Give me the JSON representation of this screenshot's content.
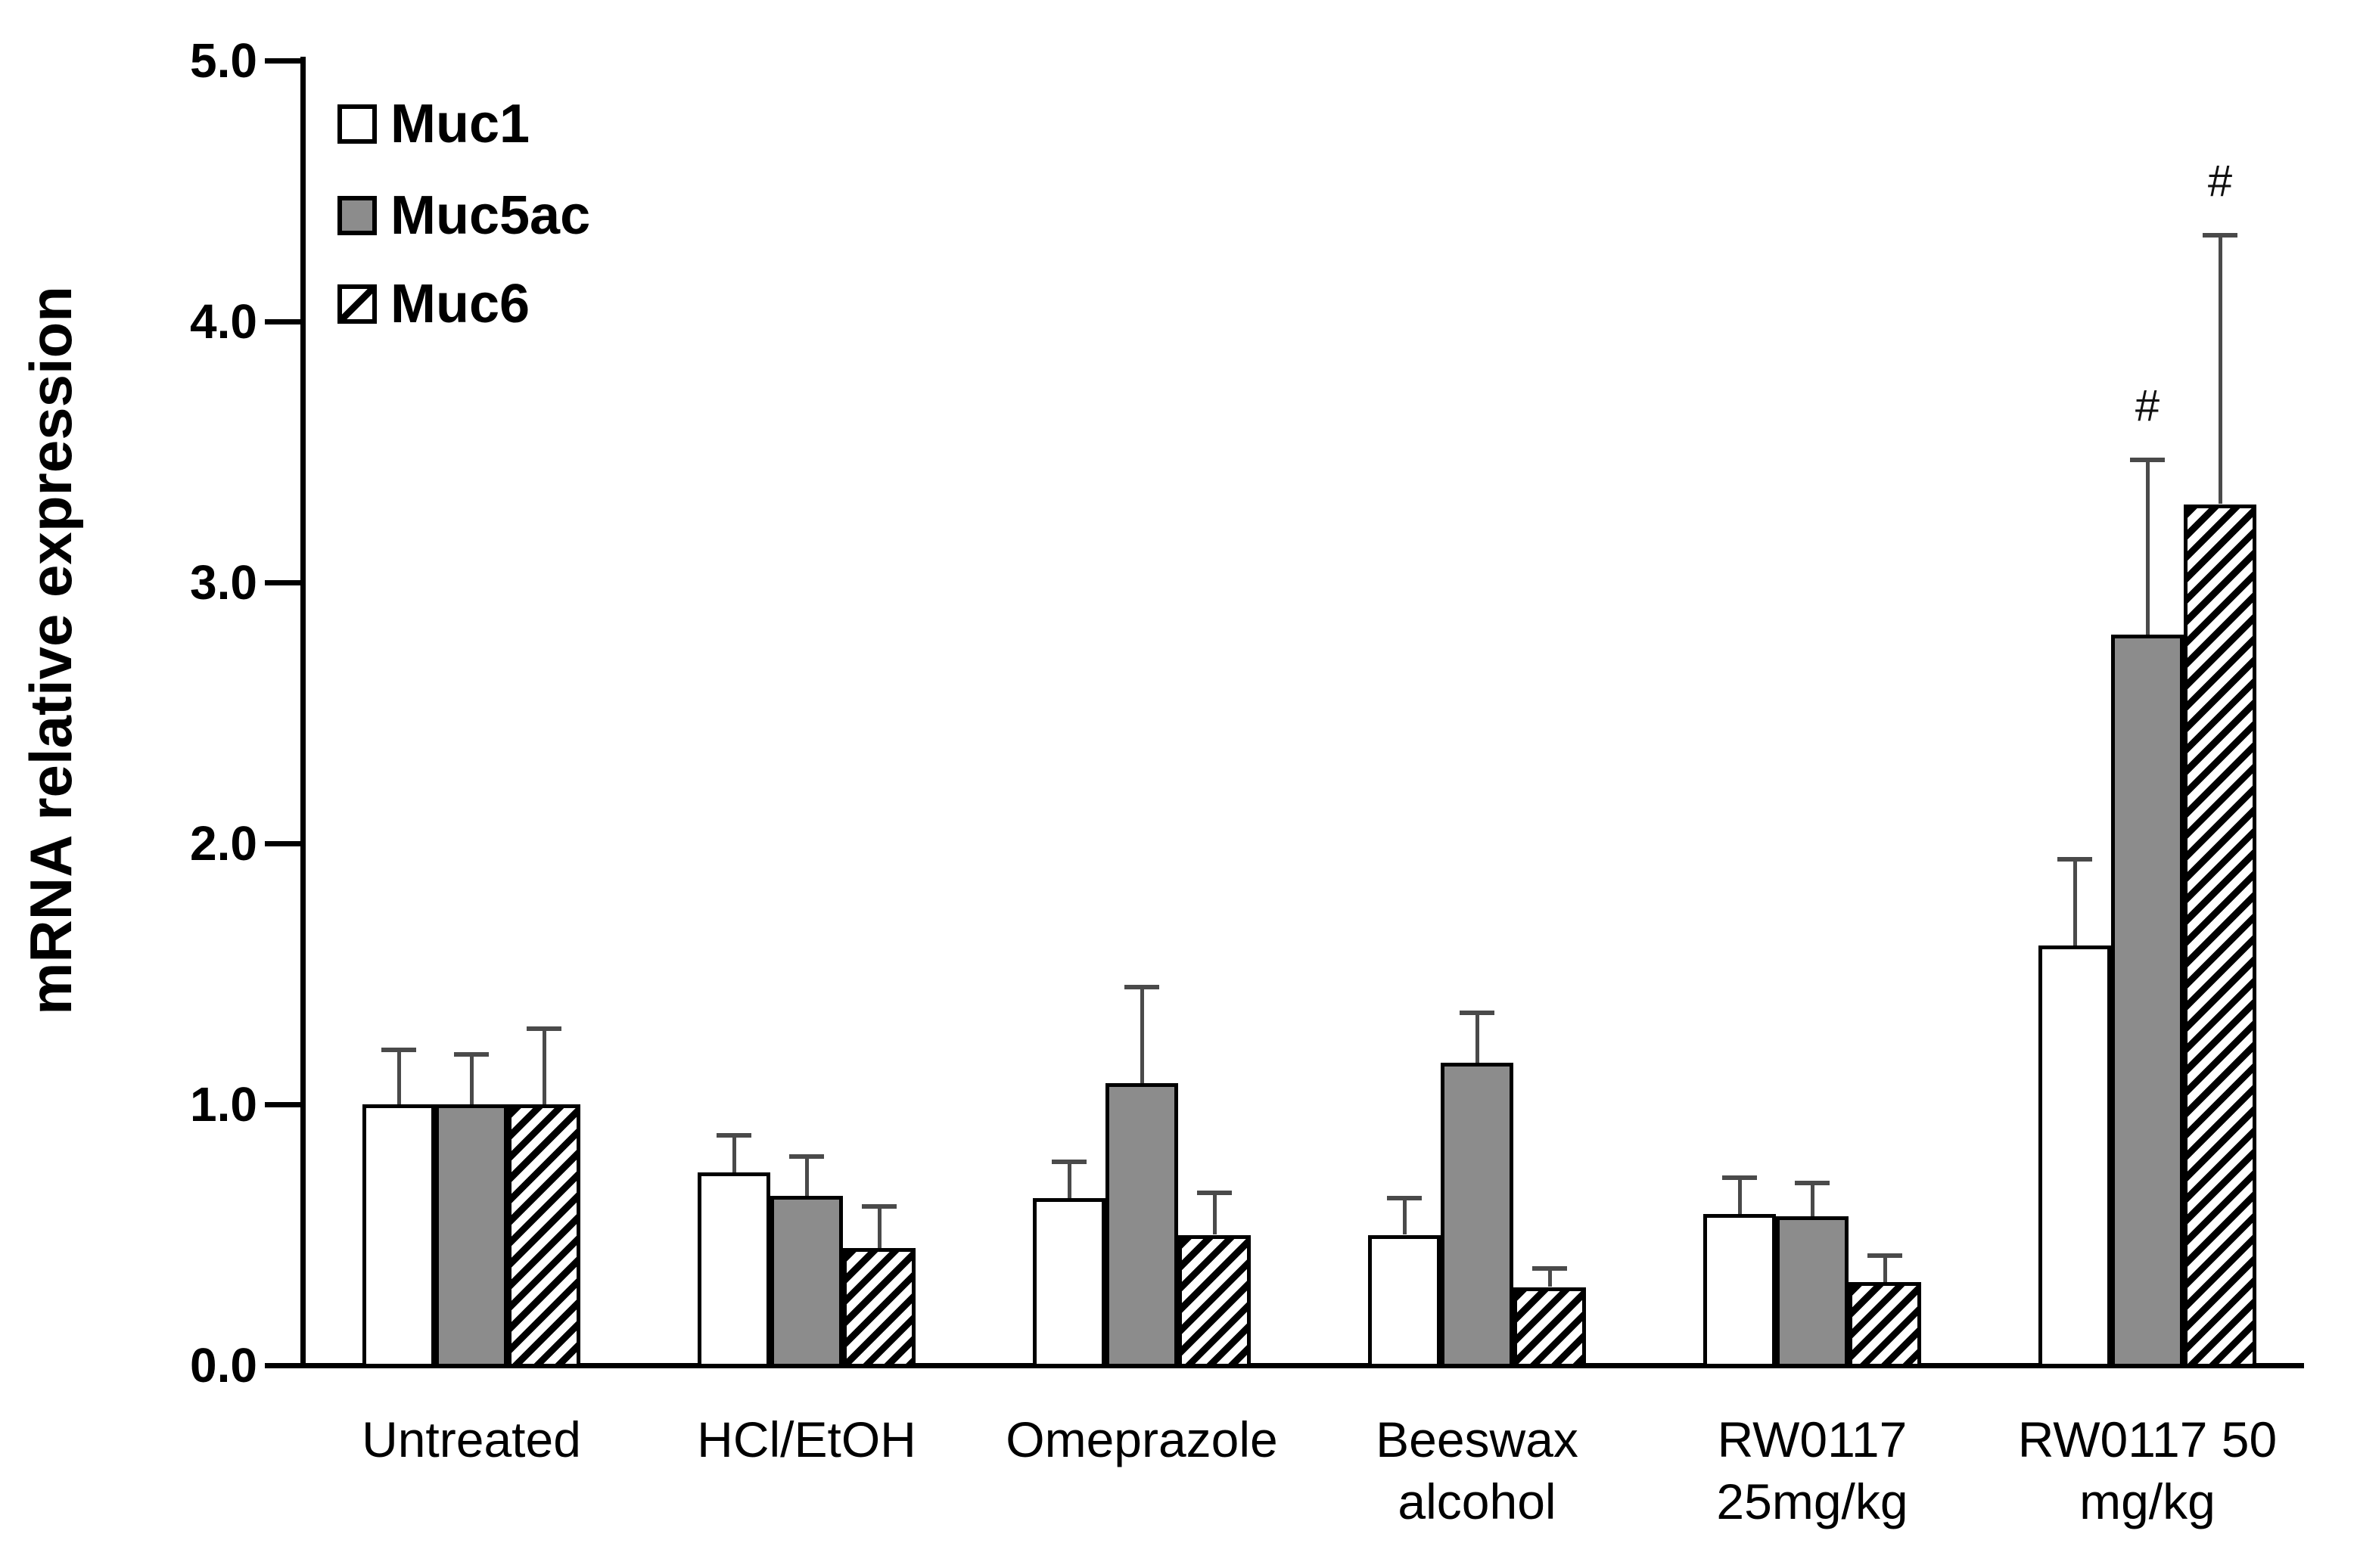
{
  "figure": {
    "background": "#ffffff"
  },
  "chart_data": {
    "type": "bar",
    "title": "",
    "xlabel": "",
    "ylabel": "mRNA relative expression",
    "ylim": [
      0.0,
      5.0
    ],
    "yticks": [
      "0.0",
      "1.0",
      "2.0",
      "3.0",
      "4.0",
      "5.0"
    ],
    "grid": "off",
    "legend_position": "top-left-inside",
    "categories": [
      "Untreated",
      "HCl/EtOH",
      "Omeprazole",
      "Beeswax alcohol",
      "RW0117 25mg/kg",
      "RW0117 50 mg/kg"
    ],
    "category_lines": [
      [
        "Untreated"
      ],
      [
        "HCl/EtOH"
      ],
      [
        "Omeprazole"
      ],
      [
        "Beeswax",
        "alcohol"
      ],
      [
        "RW0117",
        "25mg/kg"
      ],
      [
        "RW0117 50",
        "mg/kg"
      ]
    ],
    "series": [
      {
        "name": "Muc1",
        "style": "open",
        "values": [
          1.0,
          0.74,
          0.64,
          0.5,
          0.58,
          1.61
        ],
        "errors_plus": [
          0.21,
          0.14,
          0.14,
          0.14,
          0.14,
          0.33
        ],
        "annotations": [
          "",
          "",
          "",
          "",
          "",
          ""
        ]
      },
      {
        "name": "Muc5ac",
        "style": "solid-gray",
        "values": [
          1.0,
          0.65,
          1.08,
          1.16,
          0.57,
          2.8
        ],
        "errors_plus": [
          0.19,
          0.15,
          0.37,
          0.19,
          0.13,
          0.67
        ],
        "annotations": [
          "",
          "",
          "",
          "",
          "",
          "#"
        ]
      },
      {
        "name": "Muc6",
        "style": "hatched",
        "values": [
          1.0,
          0.45,
          0.5,
          0.3,
          0.32,
          3.3
        ],
        "errors_plus": [
          0.29,
          0.16,
          0.16,
          0.07,
          0.1,
          1.03
        ],
        "annotations": [
          "",
          "",
          "",
          "",
          "",
          "#"
        ]
      }
    ],
    "colors": {
      "bar_white": "#ffffff",
      "bar_gray": "#8c8c8c",
      "bar_border": "#000000",
      "hatch_foreground": "#000000",
      "hatch_background": "#ffffff",
      "error_bar": "#4a4a4a",
      "axis": "#000000",
      "text": "#000000"
    }
  }
}
